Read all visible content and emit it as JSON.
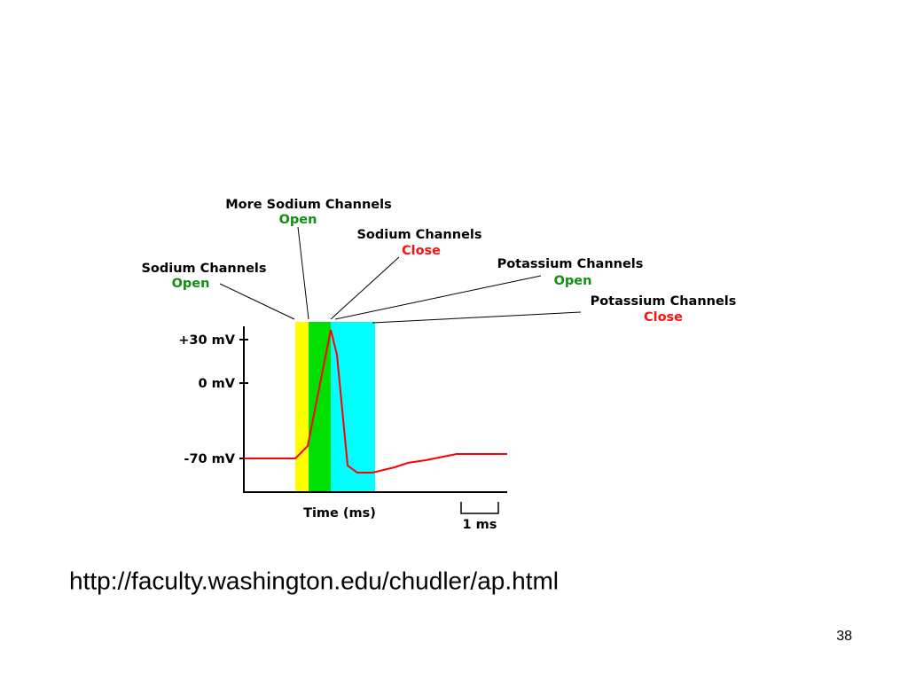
{
  "diagram": {
    "annotations": [
      {
        "title": "Sodium Channels",
        "state": "Open"
      },
      {
        "title": "More Sodium Channels",
        "state": "Open"
      },
      {
        "title": "Sodium Channels",
        "state": "Close"
      },
      {
        "title": "Potassium Channels",
        "state": "Open"
      },
      {
        "title": "Potassium Channels",
        "state": "Close"
      }
    ],
    "y_axis_labels": [
      "+30 mV",
      "0 mV",
      "-70 mV"
    ],
    "x_axis_label": "Time (ms)",
    "scale_bar_label": "1 ms"
  },
  "footer": {
    "url": "http://faculty.washington.edu/chudler/ap.html",
    "page_number": "38"
  }
}
